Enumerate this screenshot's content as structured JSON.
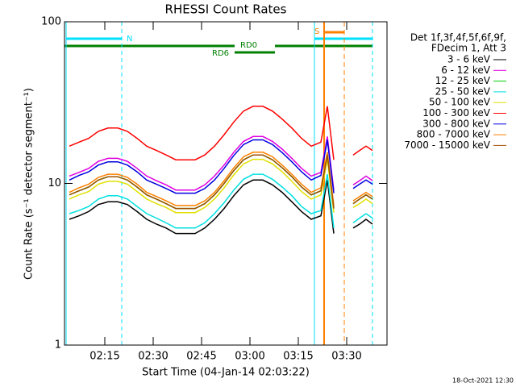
{
  "chart_data": {
    "type": "line",
    "title": "RHESSI Count Rates",
    "x_label": "Start Time (04-Jan-14 02:03:22)",
    "y_label": "Count Rate (s⁻¹ detector segment⁻¹)",
    "legend_header": [
      "Det 1f,3f,4f,5f,6f,9f,",
      "FDecim 1, Att 3"
    ],
    "annotations": [
      "N",
      "S",
      "RD0",
      "RD6"
    ],
    "footer": "18-Oct-2021 12:30",
    "log_y": true,
    "xlim": [
      122.5,
      222.5
    ],
    "xticks": [
      {
        "value": 135,
        "label": "02:15"
      },
      {
        "value": 150,
        "label": "02:30"
      },
      {
        "value": 165,
        "label": "02:45"
      },
      {
        "value": 180,
        "label": "03:00"
      },
      {
        "value": 195,
        "label": "03:15"
      },
      {
        "value": 210,
        "label": "03:30"
      }
    ],
    "ylim": [
      1,
      100
    ],
    "yticks": [
      1,
      10,
      100
    ],
    "x": [
      124,
      127,
      130,
      133,
      136,
      139,
      142,
      145,
      148,
      151,
      154,
      157,
      160,
      163,
      166,
      169,
      172,
      175,
      178,
      181,
      184,
      187,
      190,
      193,
      196,
      199,
      202,
      204,
      206,
      209,
      212,
      214,
      216,
      218
    ],
    "series": [
      {
        "name": "3 - 6 keV",
        "color": "#000000",
        "values": [
          6.0,
          6.3,
          6.7,
          7.4,
          7.7,
          7.7,
          7.4,
          6.7,
          6.0,
          5.6,
          5.3,
          4.9,
          4.9,
          4.9,
          5.3,
          6.0,
          7.0,
          8.4,
          9.8,
          10.5,
          10.5,
          9.8,
          8.8,
          7.7,
          6.7,
          6.0,
          6.3,
          10.5,
          4.9,
          null,
          5.3,
          5.6,
          6.0,
          5.6
        ]
      },
      {
        "name": "6 - 12 keV",
        "color": "#e000e0",
        "values": [
          11.1,
          11.7,
          12.4,
          13.7,
          14.3,
          14.3,
          13.7,
          12.4,
          11.1,
          10.4,
          9.8,
          9.1,
          9.1,
          9.1,
          9.8,
          11.1,
          13,
          15.6,
          18.2,
          19.5,
          19.5,
          18.2,
          16.3,
          14.3,
          12.4,
          11.1,
          11.7,
          19.5,
          9.1,
          null,
          9.8,
          10.4,
          11.1,
          10.4
        ]
      },
      {
        "name": "12 - 25 keV",
        "color": "#00d000",
        "values": [
          8.5,
          9,
          9.5,
          10.5,
          11,
          11,
          10.5,
          9.5,
          8.5,
          8,
          7.5,
          7,
          7,
          7,
          7.5,
          8.5,
          10,
          12,
          14,
          15,
          15,
          14,
          12.5,
          11,
          9.5,
          8.5,
          9,
          15,
          7,
          null,
          7.5,
          8,
          8.5,
          8
        ]
      },
      {
        "name": "25 - 50 keV",
        "color": "#00e0e0",
        "values": [
          6.5,
          6.8,
          7.2,
          8.0,
          8.4,
          8.4,
          8.0,
          7.2,
          6.5,
          6.1,
          5.7,
          5.3,
          5.3,
          5.3,
          5.7,
          6.5,
          7.6,
          9.1,
          10.6,
          11.4,
          11.4,
          10.6,
          9.5,
          8.4,
          7.2,
          6.5,
          6.8,
          11.4,
          5.3,
          null,
          5.7,
          6.1,
          6.5,
          6.1
        ]
      },
      {
        "name": "50 - 100 keV",
        "color": "#e0e000",
        "values": [
          8.0,
          8.5,
          8.9,
          9.9,
          10.3,
          10.3,
          9.9,
          8.9,
          8.0,
          7.5,
          7.1,
          6.6,
          6.6,
          6.6,
          7.1,
          8.0,
          9.4,
          11.3,
          13.2,
          14.1,
          14.1,
          13.2,
          11.8,
          10.3,
          8.9,
          8.0,
          8.5,
          14.1,
          6.6,
          null,
          7.1,
          7.5,
          8.0,
          7.5
        ]
      },
      {
        "name": "100 - 300 keV",
        "color": "#ff0000",
        "values": [
          17,
          18,
          19,
          21,
          22,
          22,
          21,
          19,
          17,
          16,
          15,
          14,
          14,
          14,
          15,
          17,
          20,
          24,
          28,
          30,
          30,
          28,
          25,
          22,
          19,
          17,
          18,
          30,
          14,
          null,
          15,
          16,
          17,
          16
        ]
      },
      {
        "name": "300 - 800 keV",
        "color": "#0000e0",
        "values": [
          10.5,
          11.2,
          11.8,
          13,
          13.6,
          13.6,
          13,
          11.8,
          10.5,
          9.9,
          9.3,
          8.7,
          8.7,
          8.7,
          9.3,
          10.5,
          12.4,
          14.9,
          17.4,
          18.6,
          18.6,
          17.4,
          15.5,
          13.6,
          11.8,
          10.5,
          11.2,
          18.6,
          8.7,
          null,
          9.3,
          9.9,
          10.5,
          9.9
        ]
      },
      {
        "name": "800 - 7000 keV",
        "color": "#ff8000",
        "values": [
          8.8,
          9.4,
          9.9,
          10.9,
          11.4,
          11.4,
          10.9,
          9.9,
          8.8,
          8.3,
          7.8,
          7.3,
          7.3,
          7.3,
          7.8,
          8.8,
          10.4,
          12.5,
          14.6,
          15.6,
          15.6,
          14.6,
          13,
          11.4,
          9.9,
          8.8,
          9.4,
          15.6,
          7.3,
          null,
          7.8,
          8.3,
          8.8,
          8.3
        ]
      },
      {
        "name": "7000 - 15000 keV",
        "color": "#a05000",
        "values": [
          8.5,
          9,
          9.5,
          10.5,
          11,
          11,
          10.5,
          9.5,
          8.5,
          8,
          7.5,
          7,
          7,
          7,
          7.5,
          8.5,
          10,
          12,
          14,
          15,
          15,
          14,
          12.5,
          11,
          9.5,
          8.5,
          9,
          15,
          7,
          null,
          7.5,
          8,
          8.5,
          8
        ]
      }
    ]
  }
}
